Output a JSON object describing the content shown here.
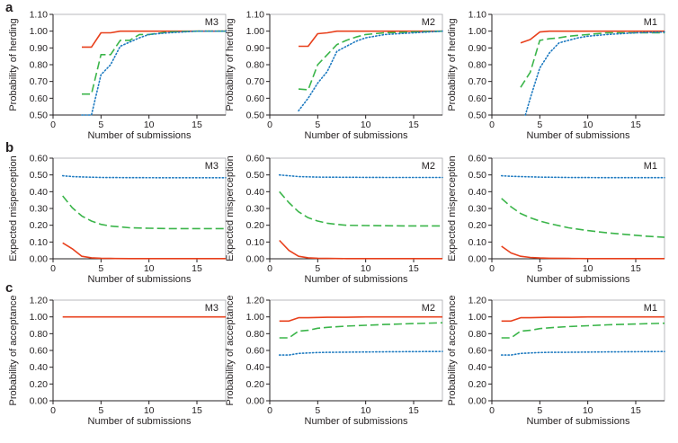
{
  "panel_letters": [
    "a",
    "b",
    "c"
  ],
  "colors": {
    "red": "#e8401c",
    "green": "#3bb54a",
    "blue": "#1f7bc1",
    "axis": "#231f20",
    "box": "#a7a9ac"
  },
  "chart_data": [
    {
      "type": "line",
      "row": 0,
      "col": 0,
      "title": "M3",
      "xlabel": "Number of submissions",
      "ylabel": "Probability of herding",
      "xlim": [
        0,
        18
      ],
      "ylim": [
        0.5,
        1.1
      ],
      "xticks": [
        0,
        5,
        10,
        15
      ],
      "xtick_labels": [
        "0",
        "5",
        "10",
        "15"
      ],
      "yticks": [
        0.5,
        0.6,
        0.7,
        0.8,
        0.9,
        1.0,
        1.1
      ],
      "ytick_labels": [
        "0.50",
        "0.60",
        "0.70",
        "0.80",
        "0.90",
        "1.00",
        "1.10"
      ],
      "series": [
        {
          "color": "red",
          "style": "solid",
          "x": [
            3,
            4,
            5,
            6,
            7,
            8,
            10,
            12,
            15,
            18
          ],
          "y": [
            0.905,
            0.905,
            0.99,
            0.99,
            1.0,
            1.0,
            1.0,
            1.0,
            1.0,
            1.0
          ]
        },
        {
          "color": "green",
          "style": "dashed",
          "x": [
            3,
            4,
            5,
            6,
            7,
            8,
            9,
            10,
            12,
            15,
            18
          ],
          "y": [
            0.625,
            0.625,
            0.86,
            0.86,
            0.945,
            0.945,
            0.98,
            0.98,
            0.995,
            1.0,
            1.0
          ]
        },
        {
          "color": "blue",
          "style": "dotted",
          "x": [
            3,
            4,
            5,
            6,
            7,
            8,
            9,
            10,
            12,
            15,
            18
          ],
          "y": [
            0.5,
            0.5,
            0.74,
            0.8,
            0.91,
            0.935,
            0.96,
            0.98,
            0.99,
            1.0,
            1.0
          ]
        }
      ]
    },
    {
      "type": "line",
      "row": 0,
      "col": 1,
      "title": "M2",
      "xlabel": "Number of submissions",
      "ylabel": "Probability of herding",
      "xlim": [
        0,
        18
      ],
      "ylim": [
        0.5,
        1.1
      ],
      "xticks": [
        0,
        5,
        10,
        15
      ],
      "xtick_labels": [
        "0",
        "5",
        "10",
        "15"
      ],
      "yticks": [
        0.5,
        0.6,
        0.7,
        0.8,
        0.9,
        1.0,
        1.1
      ],
      "ytick_labels": [
        "0.50",
        "0.60",
        "0.70",
        "0.80",
        "0.90",
        "1.00",
        "1.10"
      ],
      "series": [
        {
          "color": "red",
          "style": "solid",
          "x": [
            3,
            4,
            5,
            6,
            7,
            8,
            10,
            12,
            15,
            18
          ],
          "y": [
            0.91,
            0.91,
            0.985,
            0.99,
            1.0,
            1.0,
            1.0,
            1.0,
            1.0,
            1.0
          ]
        },
        {
          "color": "green",
          "style": "dashed",
          "x": [
            3,
            4,
            5,
            6,
            7,
            8,
            9,
            10,
            12,
            15,
            18
          ],
          "y": [
            0.655,
            0.65,
            0.8,
            0.86,
            0.92,
            0.945,
            0.965,
            0.98,
            0.99,
            0.995,
            1.0
          ]
        },
        {
          "color": "blue",
          "style": "dotted",
          "x": [
            3,
            4,
            5,
            6,
            7,
            8,
            9,
            10,
            12,
            15,
            18
          ],
          "y": [
            0.525,
            0.6,
            0.69,
            0.76,
            0.88,
            0.91,
            0.94,
            0.96,
            0.98,
            0.99,
            1.0
          ]
        }
      ]
    },
    {
      "type": "line",
      "row": 0,
      "col": 2,
      "title": "M1",
      "xlabel": "Number of submissions",
      "ylabel": "Probability of herding",
      "xlim": [
        0,
        18
      ],
      "ylim": [
        0.5,
        1.1
      ],
      "xticks": [
        0,
        5,
        10,
        15
      ],
      "xtick_labels": [
        "0",
        "5",
        "10",
        "15"
      ],
      "yticks": [
        0.5,
        0.6,
        0.7,
        0.8,
        0.9,
        1.0,
        1.1
      ],
      "ytick_labels": [
        "0.50",
        "0.60",
        "0.70",
        "0.80",
        "0.90",
        "1.00",
        "1.10"
      ],
      "series": [
        {
          "color": "red",
          "style": "solid",
          "x": [
            3,
            4,
            5,
            6,
            7,
            8,
            10,
            12,
            15,
            18
          ],
          "y": [
            0.93,
            0.95,
            0.995,
            1.0,
            1.0,
            1.0,
            1.0,
            1.0,
            1.0,
            1.0
          ]
        },
        {
          "color": "green",
          "style": "dashed",
          "x": [
            3,
            4,
            5,
            6,
            7,
            8,
            10,
            12,
            15,
            18
          ],
          "y": [
            0.665,
            0.755,
            0.945,
            0.955,
            0.96,
            0.97,
            0.98,
            0.99,
            0.99,
            0.99
          ]
        },
        {
          "color": "blue",
          "style": "dotted",
          "x": [
            3.5,
            4,
            5,
            6,
            7,
            8,
            9,
            10,
            12,
            15,
            18
          ],
          "y": [
            0.5,
            0.6,
            0.78,
            0.87,
            0.93,
            0.945,
            0.96,
            0.97,
            0.98,
            0.99,
            0.995
          ]
        }
      ]
    },
    {
      "type": "line",
      "row": 1,
      "col": 0,
      "title": "M3",
      "xlabel": "Number of submissions",
      "ylabel": "Expected misperception",
      "xlim": [
        0,
        18
      ],
      "ylim": [
        0,
        0.6
      ],
      "xticks": [
        0,
        5,
        10,
        15
      ],
      "xtick_labels": [
        "0",
        "5",
        "10",
        "15"
      ],
      "yticks": [
        0,
        0.1,
        0.2,
        0.3,
        0.4,
        0.5,
        0.6
      ],
      "ytick_labels": [
        "0.00",
        "0.10",
        "0.20",
        "0.30",
        "0.40",
        "0.50",
        "0.60"
      ],
      "series": [
        {
          "color": "red",
          "style": "solid",
          "x": [
            1,
            2,
            3,
            4,
            5,
            6,
            8,
            10,
            12,
            15,
            18
          ],
          "y": [
            0.095,
            0.06,
            0.015,
            0.006,
            0.003,
            0.002,
            0.001,
            0.001,
            0.001,
            0.001,
            0.001
          ]
        },
        {
          "color": "green",
          "style": "dashed",
          "x": [
            1,
            2,
            3,
            4,
            5,
            6,
            7,
            8,
            10,
            12,
            14,
            16,
            18
          ],
          "y": [
            0.375,
            0.305,
            0.255,
            0.225,
            0.205,
            0.195,
            0.19,
            0.185,
            0.182,
            0.18,
            0.18,
            0.18,
            0.18
          ]
        },
        {
          "color": "blue",
          "style": "dotted",
          "x": [
            1,
            2,
            3,
            5,
            8,
            12,
            15,
            18
          ],
          "y": [
            0.495,
            0.49,
            0.488,
            0.485,
            0.484,
            0.483,
            0.483,
            0.483
          ]
        }
      ]
    },
    {
      "type": "line",
      "row": 1,
      "col": 1,
      "title": "M2",
      "xlabel": "Number of submissions",
      "ylabel": "Expected misperception",
      "xlim": [
        0,
        18
      ],
      "ylim": [
        0,
        0.6
      ],
      "xticks": [
        0,
        5,
        10,
        15
      ],
      "xtick_labels": [
        "0",
        "5",
        "10",
        "15"
      ],
      "yticks": [
        0,
        0.1,
        0.2,
        0.3,
        0.4,
        0.5,
        0.6
      ],
      "ytick_labels": [
        "0.00",
        "0.10",
        "0.20",
        "0.30",
        "0.40",
        "0.50",
        "0.60"
      ],
      "series": [
        {
          "color": "red",
          "style": "solid",
          "x": [
            1,
            2,
            3,
            4,
            5,
            6,
            8,
            10,
            12,
            15,
            18
          ],
          "y": [
            0.11,
            0.05,
            0.015,
            0.006,
            0.003,
            0.002,
            0.001,
            0.001,
            0.001,
            0.001,
            0.001
          ]
        },
        {
          "color": "green",
          "style": "dashed",
          "x": [
            1,
            2,
            3,
            4,
            5,
            6,
            7,
            8,
            10,
            12,
            14,
            16,
            18
          ],
          "y": [
            0.4,
            0.335,
            0.28,
            0.245,
            0.225,
            0.212,
            0.205,
            0.2,
            0.198,
            0.197,
            0.196,
            0.196,
            0.196
          ]
        },
        {
          "color": "blue",
          "style": "dotted",
          "x": [
            1,
            2,
            3,
            5,
            8,
            12,
            15,
            18
          ],
          "y": [
            0.5,
            0.495,
            0.49,
            0.487,
            0.486,
            0.485,
            0.485,
            0.485
          ]
        }
      ]
    },
    {
      "type": "line",
      "row": 1,
      "col": 2,
      "title": "M1",
      "xlabel": "Number of submissions",
      "ylabel": "Expected misperception",
      "xlim": [
        0,
        18
      ],
      "ylim": [
        0,
        0.6
      ],
      "xticks": [
        0,
        5,
        10,
        15
      ],
      "xtick_labels": [
        "0",
        "5",
        "10",
        "15"
      ],
      "yticks": [
        0,
        0.1,
        0.2,
        0.3,
        0.4,
        0.5,
        0.6
      ],
      "ytick_labels": [
        "0.00",
        "0.10",
        "0.20",
        "0.30",
        "0.40",
        "0.50",
        "0.60"
      ],
      "series": [
        {
          "color": "red",
          "style": "solid",
          "x": [
            1,
            2,
            3,
            4,
            5,
            6,
            8,
            10,
            12,
            15,
            18
          ],
          "y": [
            0.075,
            0.035,
            0.015,
            0.008,
            0.005,
            0.003,
            0.002,
            0.001,
            0.001,
            0.001,
            0.001
          ]
        },
        {
          "color": "green",
          "style": "dashed",
          "x": [
            1,
            2,
            3,
            4,
            5,
            6,
            8,
            10,
            12,
            14,
            16,
            18
          ],
          "y": [
            0.36,
            0.31,
            0.27,
            0.245,
            0.225,
            0.21,
            0.185,
            0.168,
            0.155,
            0.145,
            0.135,
            0.128
          ]
        },
        {
          "color": "blue",
          "style": "dotted",
          "x": [
            1,
            2,
            3,
            5,
            8,
            12,
            15,
            18
          ],
          "y": [
            0.495,
            0.492,
            0.49,
            0.487,
            0.485,
            0.484,
            0.484,
            0.484
          ]
        }
      ]
    },
    {
      "type": "line",
      "row": 2,
      "col": 0,
      "title": "M3",
      "xlabel": "Number of submissions",
      "ylabel": "Probability of acceptance",
      "xlim": [
        0,
        18
      ],
      "ylim": [
        0,
        1.2
      ],
      "xticks": [
        0,
        5,
        10,
        15
      ],
      "xtick_labels": [
        "0",
        "5",
        "10",
        "15"
      ],
      "yticks": [
        0,
        0.2,
        0.4,
        0.6,
        0.8,
        1.0,
        1.2
      ],
      "ytick_labels": [
        "0.00",
        "0.20",
        "0.40",
        "0.60",
        "0.80",
        "1.00",
        "1.20"
      ],
      "series": [
        {
          "color": "red",
          "style": "solid",
          "x": [
            1,
            18
          ],
          "y": [
            1.0,
            1.0
          ]
        }
      ]
    },
    {
      "type": "line",
      "row": 2,
      "col": 1,
      "title": "M2",
      "xlabel": "Number of submissions",
      "ylabel": "Probability of acceptance",
      "xlim": [
        0,
        18
      ],
      "ylim": [
        0,
        1.2
      ],
      "xticks": [
        0,
        5,
        10,
        15
      ],
      "xtick_labels": [
        "0",
        "5",
        "10",
        "15"
      ],
      "yticks": [
        0,
        0.2,
        0.4,
        0.6,
        0.8,
        1.0,
        1.2
      ],
      "ytick_labels": [
        "0.00",
        "0.20",
        "0.40",
        "0.60",
        "0.80",
        "1.00",
        "1.20"
      ],
      "series": [
        {
          "color": "red",
          "style": "solid",
          "x": [
            1,
            2,
            3,
            4,
            6,
            8,
            10,
            12,
            15,
            18
          ],
          "y": [
            0.95,
            0.95,
            0.99,
            0.99,
            0.995,
            0.995,
            1.0,
            1.0,
            1.0,
            1.0
          ]
        },
        {
          "color": "green",
          "style": "dashed",
          "x": [
            1,
            2,
            3,
            4,
            5,
            6,
            8,
            10,
            12,
            15,
            18
          ],
          "y": [
            0.75,
            0.75,
            0.83,
            0.84,
            0.865,
            0.875,
            0.89,
            0.9,
            0.91,
            0.92,
            0.93
          ]
        },
        {
          "color": "blue",
          "style": "dotted",
          "x": [
            1,
            2,
            3,
            4,
            5,
            6,
            8,
            10,
            12,
            15,
            18
          ],
          "y": [
            0.545,
            0.545,
            0.565,
            0.57,
            0.575,
            0.578,
            0.58,
            0.582,
            0.584,
            0.586,
            0.588
          ]
        }
      ]
    },
    {
      "type": "line",
      "row": 2,
      "col": 2,
      "title": "M1",
      "xlabel": "Number of submissions",
      "ylabel": "Probability of acceptance",
      "xlim": [
        0,
        18
      ],
      "ylim": [
        0,
        1.2
      ],
      "xticks": [
        0,
        5,
        10,
        15
      ],
      "xtick_labels": [
        "0",
        "5",
        "10",
        "15"
      ],
      "yticks": [
        0,
        0.2,
        0.4,
        0.6,
        0.8,
        1.0,
        1.2
      ],
      "ytick_labels": [
        "0.00",
        "0.20",
        "0.40",
        "0.60",
        "0.80",
        "1.00",
        "1.20"
      ],
      "series": [
        {
          "color": "red",
          "style": "solid",
          "x": [
            1,
            2,
            3,
            4,
            6,
            8,
            10,
            12,
            15,
            18
          ],
          "y": [
            0.95,
            0.95,
            0.99,
            0.99,
            0.995,
            0.995,
            1.0,
            1.0,
            1.0,
            1.0
          ]
        },
        {
          "color": "green",
          "style": "dashed",
          "x": [
            1,
            2,
            3,
            4,
            5,
            6,
            8,
            10,
            12,
            15,
            18
          ],
          "y": [
            0.75,
            0.75,
            0.83,
            0.84,
            0.86,
            0.87,
            0.885,
            0.895,
            0.905,
            0.915,
            0.925
          ]
        },
        {
          "color": "blue",
          "style": "dotted",
          "x": [
            1,
            2,
            3,
            4,
            5,
            6,
            8,
            10,
            12,
            15,
            18
          ],
          "y": [
            0.545,
            0.545,
            0.565,
            0.57,
            0.575,
            0.577,
            0.579,
            0.581,
            0.583,
            0.585,
            0.587
          ]
        }
      ]
    }
  ]
}
